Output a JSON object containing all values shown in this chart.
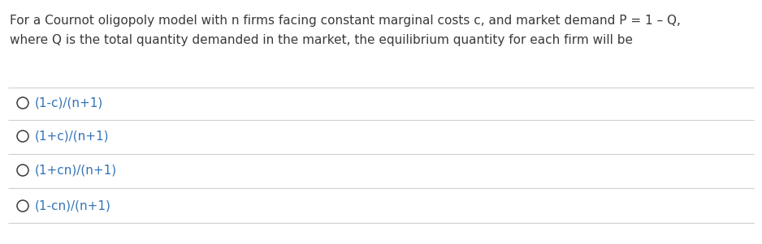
{
  "question_line1": "For a Cournot oligopoly model with n firms facing constant marginal costs c, and market demand P = 1 – Q,",
  "question_line2": "where Q is the total quantity demanded in the market, the equilibrium quantity for each firm will be",
  "options": [
    "(1-c)/(n+1)",
    "(1+c)/(n+1)",
    "(1+cn)/(n+1)",
    "(1-cn)/(n+1)"
  ],
  "bg_color": "#ffffff",
  "text_color": "#3a3a3a",
  "option_text_color": "#3474b7",
  "line_color": "#d0d0d0",
  "question_fontsize": 11.0,
  "option_fontsize": 11.0,
  "figwidth": 9.38,
  "figheight": 3.01,
  "dpi": 100
}
